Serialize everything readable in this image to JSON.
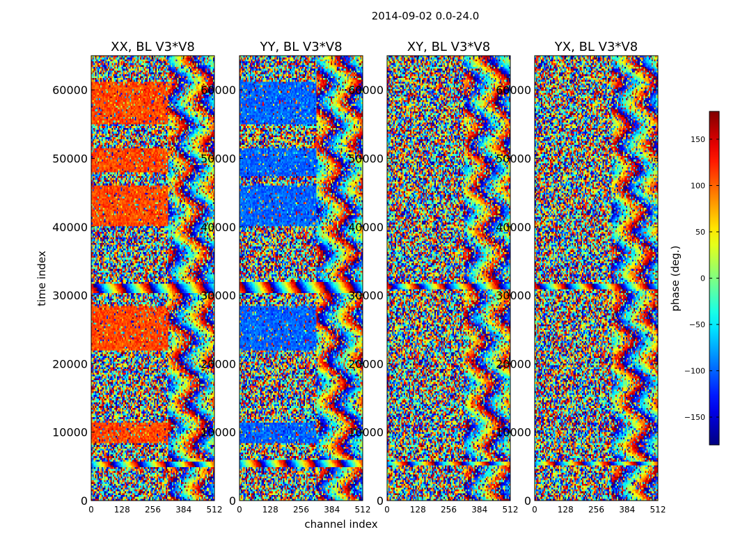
{
  "chart_data": {
    "type": "heatmap",
    "title": "2014-09-02 0.0-24.0",
    "xlabel": "channel index",
    "ylabel": "time index",
    "xlim": [
      0,
      512
    ],
    "ylim": [
      0,
      65000
    ],
    "x_ticks": [
      0,
      128,
      256,
      384,
      512
    ],
    "y_ticks": [
      0,
      10000,
      20000,
      30000,
      40000,
      50000,
      60000
    ],
    "panels": [
      {
        "title": "XX, BL V3*V8",
        "base_phase": 110,
        "coherent_blocks": [
          {
            "t0": 55000,
            "t1": 61200,
            "ch1": 320
          },
          {
            "t0": 48000,
            "t1": 51500,
            "ch1": 320
          },
          {
            "t0": 40000,
            "t1": 46000,
            "ch1": 320
          },
          {
            "t0": 22000,
            "t1": 28500,
            "ch1": 320
          },
          {
            "t0": 8500,
            "t1": 11500,
            "ch1": 320
          }
        ],
        "fringe_bands": [
          {
            "t0": 30300,
            "t1": 31800
          },
          {
            "t0": 5000,
            "t1": 5800
          }
        ]
      },
      {
        "title": "YY, BL V3*V8",
        "base_phase": -100,
        "coherent_blocks": [
          {
            "t0": 55000,
            "t1": 61200,
            "ch1": 320
          },
          {
            "t0": 47500,
            "t1": 51500,
            "ch1": 320
          },
          {
            "t0": 40000,
            "t1": 46000,
            "ch1": 320
          },
          {
            "t0": 22000,
            "t1": 28500,
            "ch1": 320
          },
          {
            "t0": 8500,
            "t1": 11500,
            "ch1": 320
          }
        ],
        "fringe_bands": [
          {
            "t0": 30300,
            "t1": 32000
          },
          {
            "t0": 4800,
            "t1": 6000
          }
        ]
      },
      {
        "title": "XY, BL V3*V8",
        "base_phase": null,
        "coherent_blocks": [],
        "fringe_bands": [
          {
            "t0": 30800,
            "t1": 31800
          },
          {
            "t0": 5200,
            "t1": 5800
          }
        ]
      },
      {
        "title": "YX, BL V3*V8",
        "base_phase": null,
        "coherent_blocks": [],
        "fringe_bands": [
          {
            "t0": 30800,
            "t1": 31800
          },
          {
            "t0": 5200,
            "t1": 5800
          }
        ]
      }
    ],
    "colorbar": {
      "label": "phase (deg.)",
      "range": [
        -180,
        180
      ],
      "ticks": [
        -150,
        -100,
        -50,
        0,
        50,
        100,
        150
      ],
      "tick_labels": [
        "−150",
        "−100",
        "−50",
        "0",
        "50",
        "100",
        "150"
      ],
      "colormap": "jet"
    }
  }
}
